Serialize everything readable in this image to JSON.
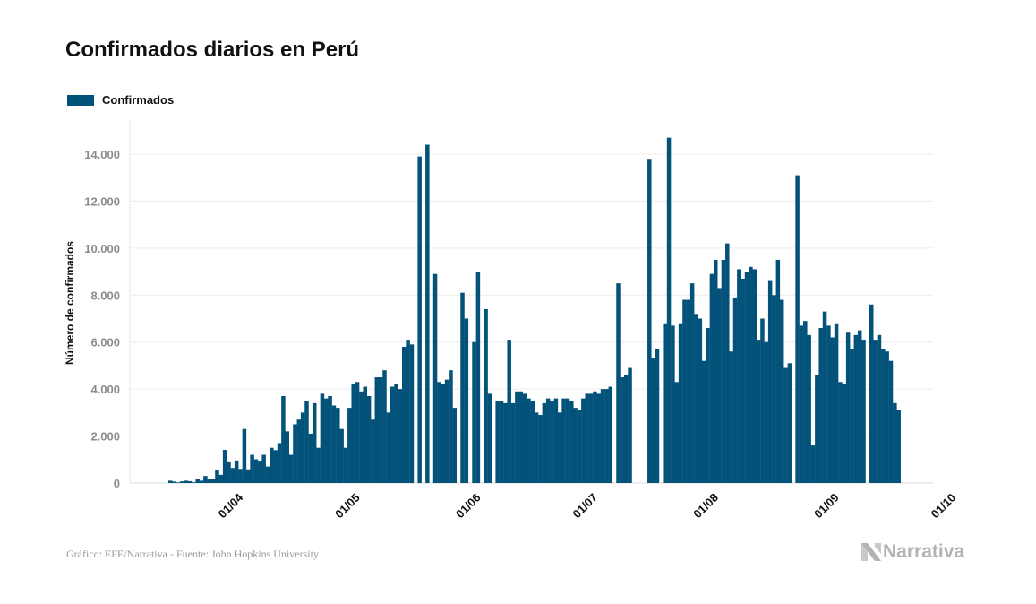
{
  "title": "Confirmados diarios en Perú",
  "legend": {
    "label": "Confirmados",
    "color": "#03527a"
  },
  "footer": {
    "source": "Gráfico: EFE/Narrativa - Fuente: John Hopkins University"
  },
  "brand": {
    "name": "Narrativa",
    "icon": "narrativa-logo-icon",
    "color": "#b3b3b3"
  },
  "chart_data": {
    "type": "bar",
    "title": "Confirmados diarios en Perú",
    "ylabel": "Número de confirmados",
    "xlabel": "",
    "ylim": [
      0,
      15000
    ],
    "yticks": [
      0,
      2000,
      4000,
      6000,
      8000,
      10000,
      12000,
      14000
    ],
    "ytick_labels": [
      "0",
      "2.000",
      "4.000",
      "6.000",
      "8.000",
      "10.000",
      "12.000",
      "14.000"
    ],
    "x_start": "2020-03-15",
    "xticks": [
      "01/04",
      "01/05",
      "01/06",
      "01/07",
      "01/08",
      "01/09",
      "01/10"
    ],
    "xtick_dates": [
      "2020-04-01",
      "2020-05-01",
      "2020-06-01",
      "2020-07-01",
      "2020-08-01",
      "2020-09-01",
      "2020-10-01"
    ],
    "grid": true,
    "legend_position": "top-left",
    "series": [
      {
        "name": "Confirmados",
        "color": "#03527a",
        "values": [
          100,
          60,
          30,
          70,
          100,
          80,
          30,
          170,
          100,
          300,
          150,
          190,
          550,
          350,
          1410,
          920,
          640,
          960,
          600,
          2300,
          580,
          1200,
          1010,
          950,
          1200,
          700,
          1500,
          1400,
          1700,
          3700,
          2200,
          1200,
          2500,
          2700,
          3000,
          3500,
          2100,
          3400,
          1500,
          3800,
          3600,
          3700,
          3300,
          3200,
          2300,
          1500,
          3200,
          4200,
          4300,
          3900,
          4100,
          3700,
          2700,
          4500,
          4500,
          4800,
          3000,
          4100,
          4200,
          4000,
          5800,
          6100,
          5900,
          0,
          13900,
          0,
          14400,
          0,
          8900,
          4300,
          4200,
          4400,
          4800,
          3200,
          0,
          8100,
          7000,
          0,
          6000,
          9000,
          0,
          7400,
          3800,
          0,
          3500,
          3500,
          3400,
          6100,
          3400,
          3900,
          3900,
          3800,
          3600,
          3500,
          3000,
          2900,
          3400,
          3600,
          3500,
          3600,
          3000,
          3600,
          3600,
          3500,
          3200,
          3100,
          3600,
          3800,
          3800,
          3900,
          3800,
          4000,
          4000,
          4100,
          0,
          8500,
          4500,
          4600,
          4900,
          0,
          0,
          0,
          0,
          13800,
          5300,
          5700,
          0,
          6800,
          14700,
          6700,
          4300,
          6800,
          7800,
          7800,
          8500,
          7200,
          7000,
          5200,
          6600,
          8900,
          9500,
          8300,
          9500,
          10200,
          5600,
          7900,
          9100,
          8700,
          9000,
          9200,
          9100,
          6100,
          7000,
          6000,
          8600,
          8000,
          9500,
          7800,
          4900,
          5100,
          0,
          13100,
          6700,
          6900,
          6300,
          1600,
          4600,
          6600,
          7300,
          6700,
          6200,
          6800,
          4300,
          4200,
          6400,
          5700,
          6300,
          6500,
          6100,
          0,
          7600,
          6100,
          6300,
          5700,
          5600,
          5200,
          3400,
          3100
        ]
      }
    ]
  }
}
